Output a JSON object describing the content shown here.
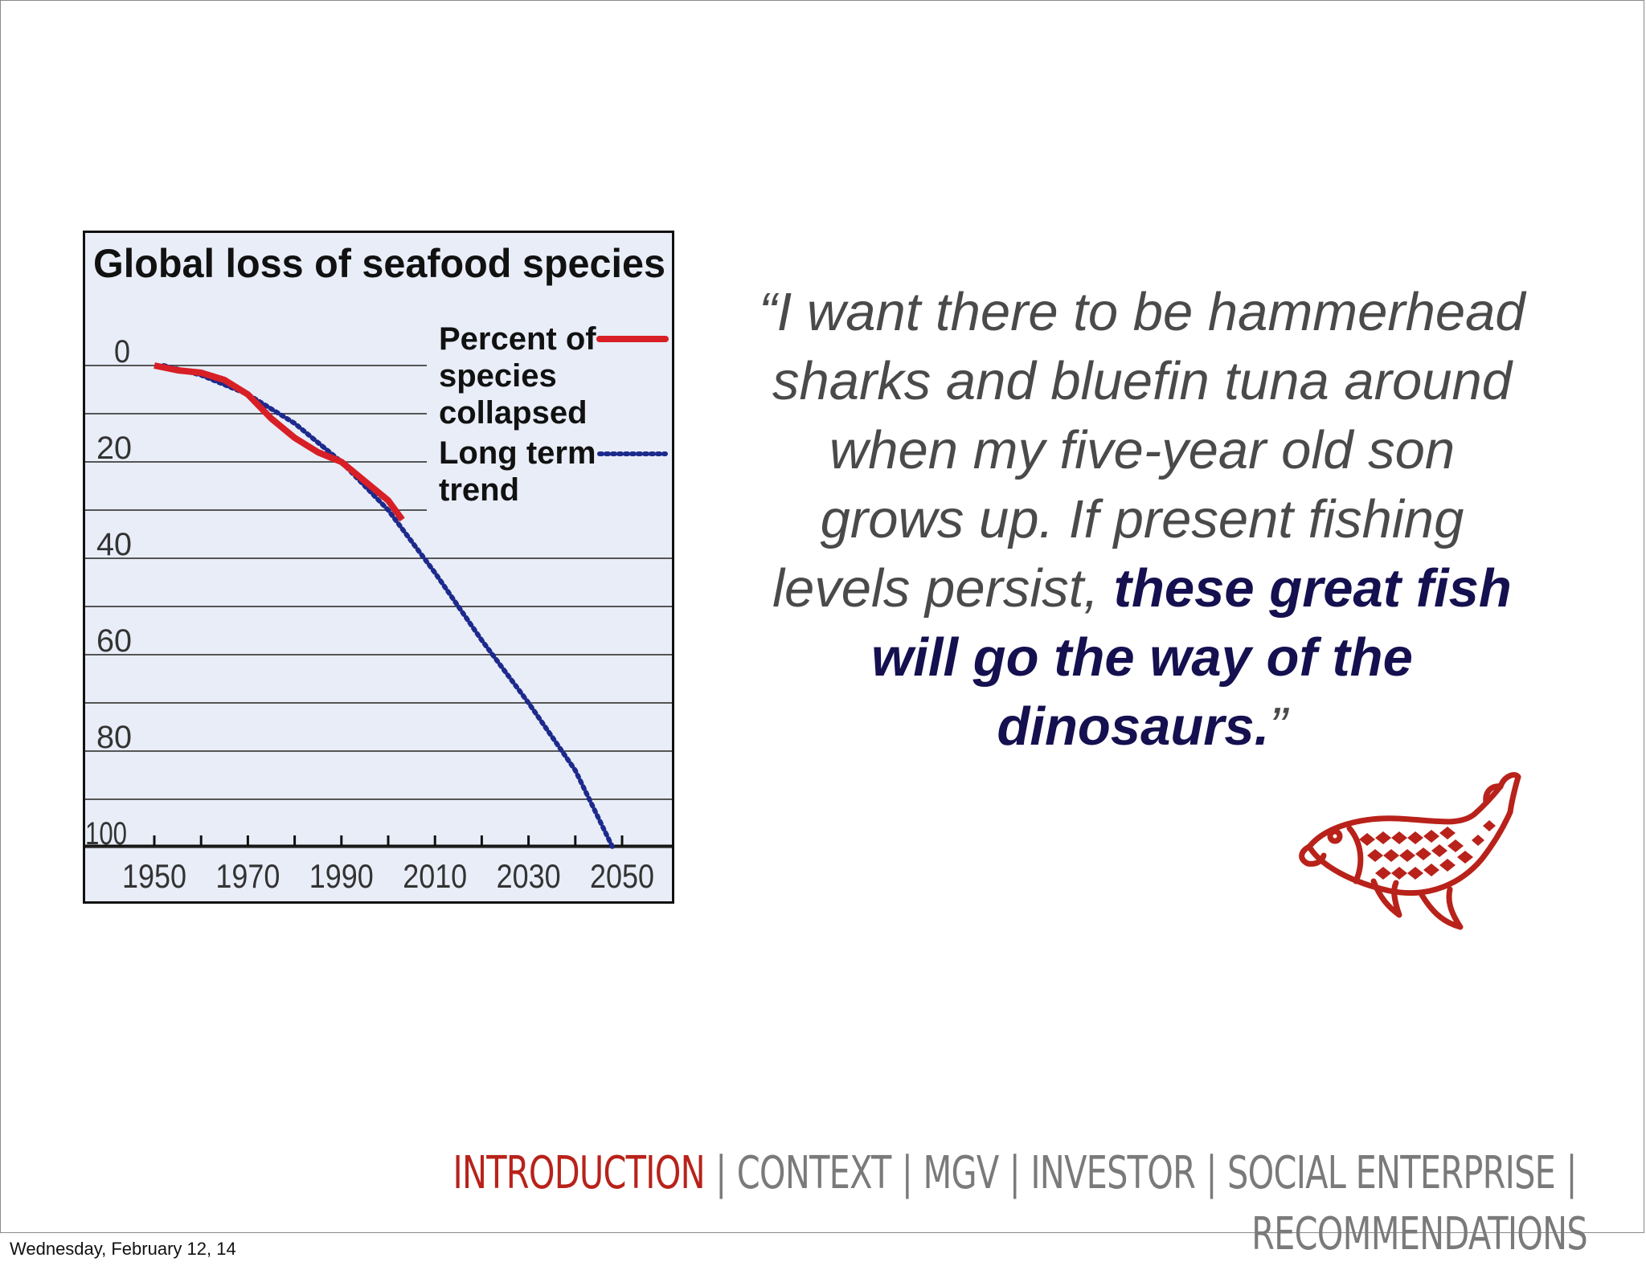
{
  "slide": {
    "quote": {
      "normal_text": "“I want there to be hammerhead sharks and bluefin tuna around when my five-year old son grows up. If present fishing levels persist,",
      "emphasis_text": "these great fish will go the way of the dinosaurs.",
      "closing_mark": "”"
    },
    "fish_logo_icon": "fish-icon",
    "accent_color": "#b8221a",
    "quote_emphasis_color": "#15104f"
  },
  "nav": {
    "items": [
      {
        "label": "INTRODUCTION",
        "active": true
      },
      {
        "label": "CONTEXT",
        "active": false
      },
      {
        "label": "MGV",
        "active": false
      },
      {
        "label": "INVESTOR",
        "active": false
      },
      {
        "label": "SOCIAL ENTERPRISE",
        "active": false
      },
      {
        "label": "RECOMMENDATIONS",
        "active": false
      }
    ],
    "separator": "|"
  },
  "footer": {
    "date": "Wednesday, February 12, 14"
  },
  "chart_data": {
    "type": "line",
    "title": "Global loss of seafood species",
    "xlabel": "",
    "ylabel": "",
    "x_ticks": [
      1950,
      1970,
      1990,
      2010,
      2030,
      2050
    ],
    "y_ticks": [
      0,
      20,
      40,
      60,
      80,
      100
    ],
    "xlim": [
      1942,
      2053
    ],
    "ylim": [
      100,
      0
    ],
    "grid": true,
    "legend_position": "top-right",
    "series": [
      {
        "name": "Percent of species collapsed",
        "color": "#d81f26",
        "style": "solid",
        "x": [
          1950,
          1955,
          1960,
          1965,
          1970,
          1975,
          1980,
          1985,
          1990,
          1995,
          2000,
          2003
        ],
        "y": [
          0,
          1,
          1.5,
          3,
          6,
          11,
          15,
          18,
          20,
          24,
          28,
          32
        ]
      },
      {
        "name": "Long term trend",
        "color": "#1d2a8c",
        "style": "dotted",
        "x": [
          1952,
          1960,
          1970,
          1980,
          1990,
          2000,
          2010,
          2020,
          2030,
          2040,
          2048
        ],
        "y": [
          0,
          2,
          6,
          12,
          20,
          30,
          43,
          57,
          70,
          84,
          100
        ]
      }
    ]
  }
}
